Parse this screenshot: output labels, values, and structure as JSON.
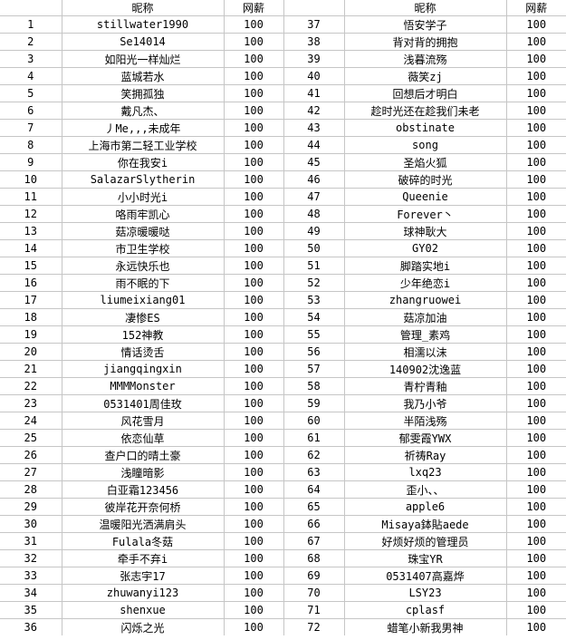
{
  "table": {
    "headers": {
      "nickname": "昵称",
      "salary": "网薪",
      "number": ""
    },
    "left_rows": [
      {
        "num": "1",
        "nickname": "stillwater1990",
        "salary": "100"
      },
      {
        "num": "2",
        "nickname": "Se14014",
        "salary": "100"
      },
      {
        "num": "3",
        "nickname": "如阳光一样灿烂",
        "salary": "100"
      },
      {
        "num": "4",
        "nickname": "蓝城若水",
        "salary": "100"
      },
      {
        "num": "5",
        "nickname": "笑拥孤独",
        "salary": "100"
      },
      {
        "num": "6",
        "nickname": "戴凡杰、",
        "salary": "100"
      },
      {
        "num": "7",
        "nickname": "丿Me,,,未成年",
        "salary": "100"
      },
      {
        "num": "8",
        "nickname": "上海市第二轻工业学校",
        "salary": "100"
      },
      {
        "num": "9",
        "nickname": "你在我安i",
        "salary": "100"
      },
      {
        "num": "10",
        "nickname": "SalazarSlytherin",
        "salary": "100"
      },
      {
        "num": "11",
        "nickname": "小小时光i",
        "salary": "100"
      },
      {
        "num": "12",
        "nickname": "咯雨牢凯心",
        "salary": "100"
      },
      {
        "num": "13",
        "nickname": "菇凉暖暖哒",
        "salary": "100"
      },
      {
        "num": "14",
        "nickname": "市卫生学校",
        "salary": "100"
      },
      {
        "num": "15",
        "nickname": "永远快乐也",
        "salary": "100"
      },
      {
        "num": "16",
        "nickname": "雨不眠的下",
        "salary": "100"
      },
      {
        "num": "17",
        "nickname": "liumeixiang01",
        "salary": "100"
      },
      {
        "num": "18",
        "nickname": "凄惨ES",
        "salary": "100"
      },
      {
        "num": "19",
        "nickname": "152神教",
        "salary": "100"
      },
      {
        "num": "20",
        "nickname": "情话烫舌",
        "salary": "100"
      },
      {
        "num": "21",
        "nickname": "jiangqingxin",
        "salary": "100"
      },
      {
        "num": "22",
        "nickname": "MMMMonster",
        "salary": "100"
      },
      {
        "num": "23",
        "nickname": "0531401周佳玫",
        "salary": "100"
      },
      {
        "num": "24",
        "nickname": "风花雪月",
        "salary": "100"
      },
      {
        "num": "25",
        "nickname": "依恋仙草",
        "salary": "100"
      },
      {
        "num": "26",
        "nickname": "查户口的晴土豪",
        "salary": "100"
      },
      {
        "num": "27",
        "nickname": "浅瞳暗影",
        "salary": "100"
      },
      {
        "num": "28",
        "nickname": "白亚霜123456",
        "salary": "100"
      },
      {
        "num": "29",
        "nickname": "彼岸花开奈何桥",
        "salary": "100"
      },
      {
        "num": "30",
        "nickname": "温暖阳光洒满肩头",
        "salary": "100"
      },
      {
        "num": "31",
        "nickname": "Fulala冬菇",
        "salary": "100"
      },
      {
        "num": "32",
        "nickname": "牵手不弃i",
        "salary": "100"
      },
      {
        "num": "33",
        "nickname": "张志宇17",
        "salary": "100"
      },
      {
        "num": "34",
        "nickname": "zhuwanyi123",
        "salary": "100"
      },
      {
        "num": "35",
        "nickname": "shenxue",
        "salary": "100"
      },
      {
        "num": "36",
        "nickname": "闪烁之光",
        "salary": "100"
      }
    ],
    "right_rows": [
      {
        "num": "37",
        "nickname": "悟安学子",
        "salary": "100"
      },
      {
        "num": "38",
        "nickname": "背对背的拥抱",
        "salary": "100"
      },
      {
        "num": "39",
        "nickname": "浅暮流殇",
        "salary": "100"
      },
      {
        "num": "40",
        "nickname": "薇笑zj",
        "salary": "100"
      },
      {
        "num": "41",
        "nickname": "回想后才明白",
        "salary": "100"
      },
      {
        "num": "42",
        "nickname": "趁时光还在趁我们未老",
        "salary": "100"
      },
      {
        "num": "43",
        "nickname": "obstinate",
        "salary": "100"
      },
      {
        "num": "44",
        "nickname": "song",
        "salary": "100"
      },
      {
        "num": "45",
        "nickname": "圣焰火狐",
        "salary": "100"
      },
      {
        "num": "46",
        "nickname": "破碎的时光",
        "salary": "100"
      },
      {
        "num": "47",
        "nickname": "Queenie",
        "salary": "100"
      },
      {
        "num": "48",
        "nickname": "Forever丶",
        "salary": "100"
      },
      {
        "num": "49",
        "nickname": "球神耿大",
        "salary": "100"
      },
      {
        "num": "50",
        "nickname": "GY02",
        "salary": "100"
      },
      {
        "num": "51",
        "nickname": "脚踏实地i",
        "salary": "100"
      },
      {
        "num": "52",
        "nickname": "少年绝恋i",
        "salary": "100"
      },
      {
        "num": "53",
        "nickname": "zhangruowei",
        "salary": "100"
      },
      {
        "num": "54",
        "nickname": "菇凉加油",
        "salary": "100"
      },
      {
        "num": "55",
        "nickname": "管理_素鸡",
        "salary": "100"
      },
      {
        "num": "56",
        "nickname": "相濡以沫",
        "salary": "100"
      },
      {
        "num": "57",
        "nickname": "140902沈逸蓝",
        "salary": "100"
      },
      {
        "num": "58",
        "nickname": "青柠青釉",
        "salary": "100"
      },
      {
        "num": "59",
        "nickname": "我乃小爷",
        "salary": "100"
      },
      {
        "num": "60",
        "nickname": "半陌浅殇",
        "salary": "100"
      },
      {
        "num": "61",
        "nickname": "郁雯霞YWX",
        "salary": "100"
      },
      {
        "num": "62",
        "nickname": "祈祷Ray",
        "salary": "100"
      },
      {
        "num": "63",
        "nickname": "lxq23",
        "salary": "100"
      },
      {
        "num": "64",
        "nickname": "歪小、、",
        "salary": "100"
      },
      {
        "num": "65",
        "nickname": "apple6",
        "salary": "100"
      },
      {
        "num": "66",
        "nickname": "Misaya鉢貼aede",
        "salary": "100"
      },
      {
        "num": "67",
        "nickname": "好烦好烦的管理员",
        "salary": "100"
      },
      {
        "num": "68",
        "nickname": "珠宝YR",
        "salary": "100"
      },
      {
        "num": "69",
        "nickname": "0531407高嘉烨",
        "salary": "100"
      },
      {
        "num": "70",
        "nickname": "LSY23",
        "salary": "100"
      },
      {
        "num": "71",
        "nickname": "cplasf",
        "salary": "100"
      },
      {
        "num": "72",
        "nickname": "蜡笔小新我男神",
        "salary": "100"
      }
    ]
  }
}
